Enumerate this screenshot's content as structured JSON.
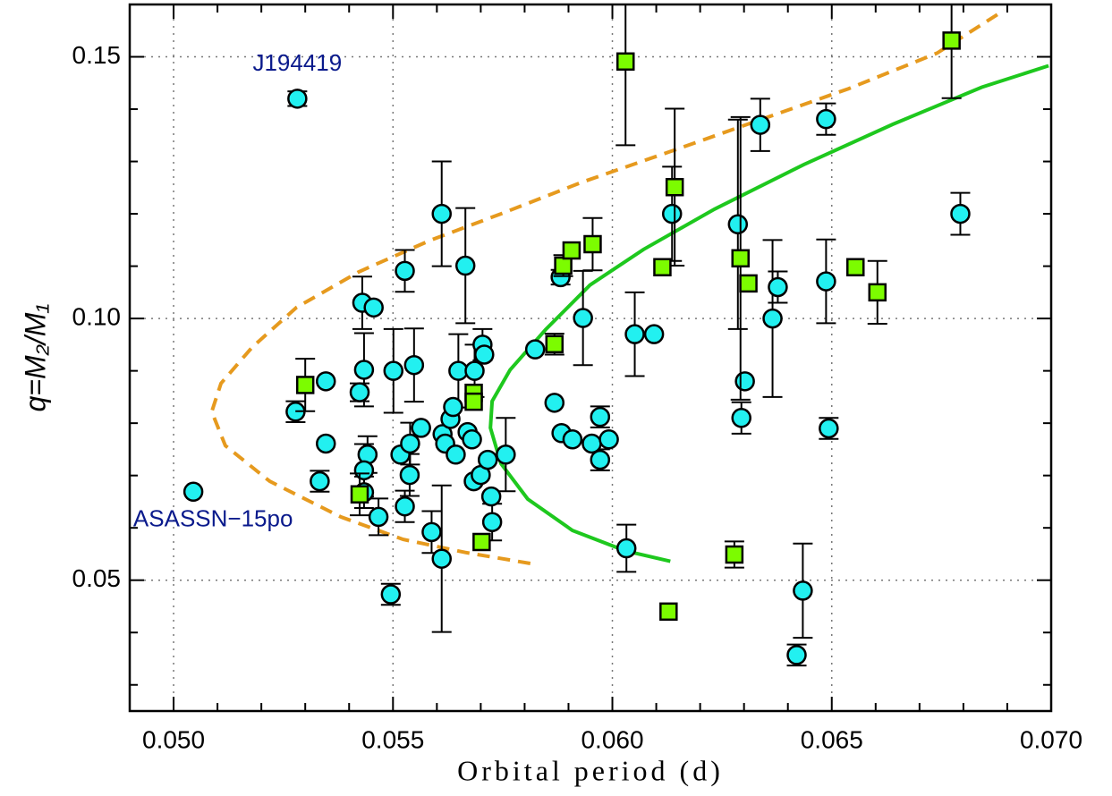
{
  "chart_data": {
    "type": "scatter",
    "xlabel": "Orbital period (d)",
    "ylabel": "q=M₂/M₁",
    "annotations": [
      {
        "text": "J194419",
        "x": 0.05282,
        "y": 0.1485
      },
      {
        "text": "ASASSN−15po",
        "x": 0.0509,
        "y": 0.0615
      }
    ],
    "xlim": [
      0.049,
      0.07
    ],
    "ylim": [
      0.025,
      0.16
    ],
    "xticks": [
      {
        "value": 0.05,
        "label": "0.050"
      },
      0.055,
      {
        "value": 0.06,
        "label": "0.060"
      },
      0.065,
      {
        "value": 0.07,
        "label": "0.070"
      }
    ],
    "yticks": [
      0.05,
      {
        "value": 0.1,
        "label": "0.10"
      },
      0.15
    ],
    "xminorticks": [
      0.049,
      0.051,
      0.052,
      0.053,
      0.054,
      0.056,
      0.057,
      0.058,
      0.059,
      0.061,
      0.062,
      0.063,
      0.064,
      0.066,
      0.067,
      0.068,
      0.069
    ],
    "yminorticks": [
      0.03,
      0.04,
      0.06,
      0.07,
      0.08,
      0.09,
      0.11,
      0.12,
      0.13,
      0.14
    ],
    "grid": true,
    "series": [
      {
        "kind": "line",
        "style": "dashed",
        "color": "#e69a1e",
        "x": [
          0.05813,
          0.05665,
          0.05523,
          0.05381,
          0.05219,
          0.05118,
          0.05087,
          0.05108,
          0.05179,
          0.0528,
          0.05422,
          0.05584,
          0.05746,
          0.05929,
          0.06132,
          0.06335,
          0.06538,
          0.0674,
          0.06893
        ],
        "values": [
          0.0532,
          0.0553,
          0.0578,
          0.0621,
          0.0689,
          0.0757,
          0.0822,
          0.0876,
          0.0945,
          0.1021,
          0.1089,
          0.1149,
          0.12,
          0.126,
          0.1319,
          0.1379,
          0.1439,
          0.1507,
          0.1589
        ]
      },
      {
        "kind": "line",
        "style": "solid",
        "color": "#1ec81e",
        "x": [
          0.06132,
          0.0603,
          0.05909,
          0.05807,
          0.05746,
          0.05722,
          0.05726,
          0.05767,
          0.05848,
          0.05949,
          0.06071,
          0.06233,
          0.06436,
          0.06639,
          0.06842,
          0.06994
        ],
        "values": [
          0.0536,
          0.0556,
          0.0595,
          0.0655,
          0.0723,
          0.0791,
          0.0842,
          0.0902,
          0.0979,
          0.1064,
          0.1132,
          0.1209,
          0.1294,
          0.1371,
          0.1442,
          0.1483
        ]
      },
      {
        "kind": "points",
        "marker": "circle",
        "color": "#22f0f0",
        "x": [
          0.05282,
          0.05045,
          0.05278,
          0.05347,
          0.05347,
          0.05333,
          0.05424,
          0.0543,
          0.05456,
          0.05442,
          0.05434,
          0.05434,
          0.05467,
          0.05434,
          0.05495,
          0.05501,
          0.05517,
          0.05527,
          0.05527,
          0.05538,
          0.05539,
          0.05548,
          0.05564,
          0.05588,
          0.05611,
          0.05611,
          0.05613,
          0.05619,
          0.05631,
          0.05637,
          0.05643,
          0.05649,
          0.05665,
          0.0567,
          0.0568,
          0.05684,
          0.05686,
          0.057,
          0.05704,
          0.05708,
          0.05716,
          0.05724,
          0.05726,
          0.05757,
          0.05824,
          0.05868,
          0.05882,
          0.05884,
          0.05909,
          0.05933,
          0.05953,
          0.05972,
          0.05972,
          0.05992,
          0.06032,
          0.06051,
          0.06095,
          0.06136,
          0.06286,
          0.06294,
          0.06302,
          0.06337,
          0.06365,
          0.06377,
          0.0642,
          0.06434,
          0.06487,
          0.06487,
          0.06493,
          0.06793
        ],
        "values": [
          0.142,
          0.0669,
          0.0822,
          0.088,
          0.0761,
          0.0689,
          0.0859,
          0.103,
          0.1021,
          0.074,
          0.071,
          0.0668,
          0.0621,
          0.0902,
          0.0473,
          0.09,
          0.074,
          0.1091,
          0.0641,
          0.0701,
          0.0761,
          0.0911,
          0.0791,
          0.0592,
          0.12,
          0.0541,
          0.0779,
          0.0761,
          0.0808,
          0.0831,
          0.074,
          0.09,
          0.1101,
          0.0783,
          0.0769,
          0.0689,
          0.09,
          0.0701,
          0.095,
          0.0931,
          0.073,
          0.066,
          0.0611,
          0.074,
          0.0941,
          0.0839,
          0.1079,
          0.0781,
          0.0769,
          0.1001,
          0.0761,
          0.0812,
          0.073,
          0.0769,
          0.0561,
          0.097,
          0.097,
          0.12,
          0.118,
          0.081,
          0.088,
          0.137,
          0.1,
          0.106,
          0.0357,
          0.048,
          0.1381,
          0.1071,
          0.079,
          0.12
        ],
        "yerr": [
          0.0014,
          null,
          0.002,
          null,
          null,
          0.002,
          0.0017,
          0.005,
          null,
          0.0035,
          0.005,
          0.003,
          0.0035,
          0.007,
          0.002,
          0.008,
          null,
          0.004,
          0.003,
          0.004,
          0.004,
          0.007,
          null,
          0.004,
          0.01,
          0.014,
          null,
          null,
          null,
          null,
          null,
          0.007,
          0.011,
          null,
          null,
          null,
          0.005,
          null,
          0.003,
          null,
          null,
          null,
          0.0035,
          0.007,
          null,
          null,
          0.0014,
          null,
          null,
          0.009,
          null,
          0.002,
          0.002,
          null,
          0.0045,
          0.008,
          null,
          0.009,
          0.02,
          0.003,
          null,
          0.005,
          0.015,
          0.003,
          0.002,
          0.009,
          0.003,
          0.008,
          0.002,
          0.004
        ]
      },
      {
        "kind": "points",
        "marker": "square",
        "color": "#7cfc00",
        "x": [
          0.053,
          0.05424,
          0.05702,
          0.05684,
          0.05684,
          0.05868,
          0.05888,
          0.05907,
          0.05955,
          0.0603,
          0.06114,
          0.06142,
          0.06128,
          0.06278,
          0.06292,
          0.0631,
          0.06554,
          0.06604,
          0.06773
        ],
        "values": [
          0.0873,
          0.0664,
          0.0573,
          0.0858,
          0.0841,
          0.0951,
          0.1101,
          0.113,
          0.1142,
          0.1491,
          0.1098,
          0.1251,
          0.044,
          0.0549,
          0.1115,
          0.1067,
          0.1098,
          0.105,
          0.1531
        ],
        "yerr": [
          0.005,
          0.004,
          null,
          null,
          null,
          0.002,
          0.002,
          null,
          0.005,
          0.016,
          null,
          0.015,
          null,
          0.0025,
          0.027,
          null,
          null,
          0.006,
          0.011
        ]
      }
    ]
  }
}
